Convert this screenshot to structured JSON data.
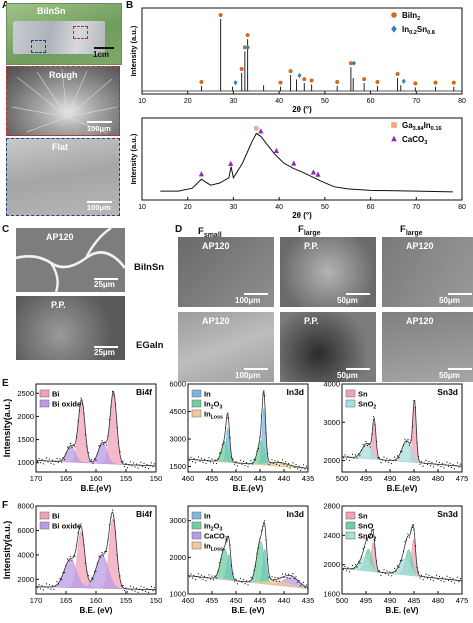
{
  "panels": {
    "A": {
      "label": "A",
      "sample": "BiInSn",
      "scale_photo": "1cm",
      "rough": "Rough",
      "flat": "Flat",
      "scale_rough": "100μm",
      "scale_flat": "100μm",
      "colors": {
        "rough_box": "#d22323",
        "flat_box": "#1f3f8f"
      }
    },
    "B": {
      "label": "B"
    },
    "C": {
      "label": "C",
      "top": "AP120",
      "bottom": "P.P.",
      "scale_top": "25μm",
      "scale_bottom": "25μm"
    },
    "D": {
      "label": "D",
      "col_headers": [
        {
          "main": "F",
          "sub": "small"
        },
        {
          "main": "F",
          "sub": "large"
        },
        {
          "main": "F",
          "sub": "large"
        }
      ],
      "row_labels": [
        "BiInSn",
        "EGaIn"
      ],
      "images": [
        {
          "label": "AP120",
          "scale": "100μm"
        },
        {
          "label": "P.P.",
          "scale": "50μm"
        },
        {
          "label": "AP120",
          "scale": "50μm"
        },
        {
          "label": "AP120",
          "scale": "100μm"
        },
        {
          "label": "P.P.",
          "scale": "50μm"
        },
        {
          "label": "AP120",
          "scale": "50μm"
        }
      ]
    },
    "E": {
      "label": "E"
    },
    "F": {
      "label": "F"
    }
  },
  "chart_data": [
    {
      "id": "B-top",
      "type": "scatter",
      "xlabel": "2θ (°)",
      "ylabel": "Intensity (a.u.)",
      "xlim": [
        10,
        80
      ],
      "xticks": [
        10,
        20,
        30,
        40,
        50,
        60,
        70,
        80
      ],
      "legend": [
        {
          "name": "BiIn",
          "sub": "2",
          "color": "#d2691e",
          "marker": "circle"
        },
        {
          "name": "In",
          "sub": "0.2",
          "name2": "Sn",
          "sub2": "0.8",
          "color": "#2c7fb8",
          "marker": "diamond"
        }
      ],
      "peaks": [
        {
          "x": 23.0,
          "h": 0.07
        },
        {
          "x": 27.2,
          "h": 1.0
        },
        {
          "x": 29.8,
          "h": 0.06
        },
        {
          "x": 31.8,
          "h": 0.25
        },
        {
          "x": 32.5,
          "h": 0.55
        },
        {
          "x": 33.1,
          "h": 0.72
        },
        {
          "x": 36.6,
          "h": 0.08
        },
        {
          "x": 40.3,
          "h": 0.06
        },
        {
          "x": 42.5,
          "h": 0.22
        },
        {
          "x": 43.8,
          "h": 0.16
        },
        {
          "x": 45.5,
          "h": 0.11
        },
        {
          "x": 47.1,
          "h": 0.09
        },
        {
          "x": 52.7,
          "h": 0.07
        },
        {
          "x": 55.7,
          "h": 0.33
        },
        {
          "x": 56.2,
          "h": 0.18
        },
        {
          "x": 58.6,
          "h": 0.11
        },
        {
          "x": 61.5,
          "h": 0.07
        },
        {
          "x": 65.9,
          "h": 0.18
        },
        {
          "x": 66.6,
          "h": 0.08
        },
        {
          "x": 69.8,
          "h": 0.05
        },
        {
          "x": 74.2,
          "h": 0.06
        },
        {
          "x": 78.2,
          "h": 0.06
        }
      ],
      "markers_birn": [
        23.0,
        27.2,
        31.8,
        32.5,
        33.1,
        40.3,
        42.5,
        45.5,
        47.1,
        52.7,
        55.7,
        58.6,
        61.5,
        65.9,
        69.8,
        74.2,
        78.2
      ],
      "markers_insn": [
        29.8,
        32.5,
        43.8,
        55.7,
        66.6
      ]
    },
    {
      "id": "B-bottom",
      "type": "line",
      "xlabel": "2θ (°)",
      "ylabel": "Intensity (a.u.)",
      "xlim": [
        10,
        80
      ],
      "xticks": [
        10,
        20,
        30,
        40,
        50,
        60,
        70,
        80
      ],
      "legend": [
        {
          "name": "Ga",
          "sub": "3.84",
          "name2": "In",
          "sub2": "0.16",
          "color": "#f4a582",
          "marker": "square"
        },
        {
          "name": "CaCO",
          "sub": "3",
          "color": "#8c2db8",
          "marker": "triangle"
        }
      ],
      "curve": [
        [
          14,
          0.12
        ],
        [
          18,
          0.12
        ],
        [
          21,
          0.16
        ],
        [
          23,
          0.28
        ],
        [
          25,
          0.2
        ],
        [
          27,
          0.23
        ],
        [
          29,
          0.3
        ],
        [
          29.5,
          0.45
        ],
        [
          30,
          0.3
        ],
        [
          32,
          0.5
        ],
        [
          34,
          0.78
        ],
        [
          35,
          0.9
        ],
        [
          36,
          0.86
        ],
        [
          37,
          0.78
        ],
        [
          39,
          0.62
        ],
        [
          41,
          0.5
        ],
        [
          43,
          0.43
        ],
        [
          45,
          0.38
        ],
        [
          47,
          0.32
        ],
        [
          49,
          0.26
        ],
        [
          52,
          0.18
        ],
        [
          55,
          0.15
        ],
        [
          60,
          0.13
        ],
        [
          70,
          0.12
        ],
        [
          78,
          0.11
        ]
      ],
      "markers_ga": [
        35.0
      ],
      "markers_caco": [
        23.0,
        29.4,
        36.0,
        39.4,
        43.2,
        47.5,
        48.5
      ]
    },
    {
      "id": "E-Bi",
      "type": "area",
      "region": "Bi4f",
      "xlabel": "B.E.(eV)",
      "ylabel": "Intensity(a.u.)",
      "xlim": [
        170,
        150
      ],
      "xticks": [
        170,
        165,
        160,
        155,
        150
      ],
      "yticks": [
        1000,
        1500,
        2000,
        2500
      ],
      "ylim": [
        800,
        2700
      ],
      "legend": [
        {
          "name": "Bi",
          "color": "#f0a3b5"
        },
        {
          "name": "Bi oxide",
          "color": "#b99be6"
        }
      ],
      "components": [
        {
          "name": "Bi",
          "color": "#f0a3b5",
          "peaks": [
            [
              162.4,
              1350
            ],
            [
              157.1,
              1550
            ]
          ],
          "width": 0.55
        },
        {
          "name": "Bi oxide",
          "color": "#b99be6",
          "peaks": [
            [
              164.2,
              350
            ],
            [
              158.9,
              450
            ]
          ],
          "width": 0.7
        }
      ],
      "baseline": [
        1050,
        930
      ]
    },
    {
      "id": "E-In",
      "type": "area",
      "region": "In3d",
      "xlabel": "B.E.(eV)",
      "ylabel": "",
      "xlim": [
        460,
        435
      ],
      "xticks": [
        460,
        455,
        450,
        445,
        440,
        435
      ],
      "yticks": [
        1500,
        3000,
        4500,
        6000
      ],
      "ylim": [
        1200,
        6000
      ],
      "legend": [
        {
          "name": "In",
          "color": "#7db6e0"
        },
        {
          "name": "In",
          "sub": "2",
          "name2": "O",
          "sub2": "3",
          "color": "#6ecfa3"
        },
        {
          "name": "In",
          "sub": "Loss",
          "color": "#f2c998"
        }
      ],
      "components": [
        {
          "name": "In",
          "color": "#7db6e0",
          "peaks": [
            [
              451.7,
              1900
            ],
            [
              444.2,
              3100
            ]
          ],
          "width": 0.35
        },
        {
          "name": "In2O3",
          "color": "#6ecfa3",
          "peaks": [
            [
              452.3,
              1100
            ],
            [
              444.8,
              1300
            ]
          ],
          "width": 0.7
        },
        {
          "name": "InLoss",
          "color": "#f2c998",
          "peaks": [
            [
              441.0,
              200
            ]
          ],
          "width": 2.0
        }
      ],
      "baseline": [
        1900,
        1400
      ]
    },
    {
      "id": "E-Sn",
      "type": "area",
      "region": "Sn3d",
      "xlabel": "B.E.(eV)",
      "ylabel": "",
      "xlim": [
        500,
        475
      ],
      "xticks": [
        500,
        495,
        490,
        485,
        480,
        475
      ],
      "yticks": [
        2000,
        3000,
        4000
      ],
      "ylim": [
        1700,
        4000
      ],
      "legend": [
        {
          "name": "Sn",
          "color": "#f0a3b5"
        },
        {
          "name": "SnO",
          "sub": "2",
          "color": "#a8dede"
        }
      ],
      "components": [
        {
          "name": "Sn",
          "color": "#f0a3b5",
          "peaks": [
            [
              493.3,
              950
            ],
            [
              484.9,
              1500
            ]
          ],
          "width": 0.35
        },
        {
          "name": "SnO2",
          "color": "#a8dede",
          "peaks": [
            [
              494.8,
              400
            ],
            [
              486.5,
              550
            ]
          ],
          "width": 1.0
        }
      ],
      "baseline": [
        2100,
        1850
      ]
    },
    {
      "id": "F-Bi",
      "type": "area",
      "region": "Bi4f",
      "xlabel": "B.E. (eV)",
      "ylabel": "Intensity(a.u.)",
      "xlim": [
        170,
        150
      ],
      "xticks": [
        170,
        165,
        160,
        155,
        150
      ],
      "yticks": [
        2000,
        4000,
        6000,
        8000
      ],
      "ylim": [
        800,
        8000
      ],
      "legend": [
        {
          "name": "Bi",
          "color": "#f0a3b5"
        },
        {
          "name": "Bi oxide",
          "color": "#b99be6"
        }
      ],
      "components": [
        {
          "name": "Bi",
          "color": "#f0a3b5",
          "peaks": [
            [
              162.5,
              4600
            ],
            [
              157.2,
              5700
            ]
          ],
          "width": 0.6
        },
        {
          "name": "Bi oxide",
          "color": "#b99be6",
          "peaks": [
            [
              164.3,
              2300
            ],
            [
              159.0,
              2700
            ]
          ],
          "width": 1.0
        }
      ],
      "baseline": [
        1400,
        1150
      ]
    },
    {
      "id": "F-In",
      "type": "area",
      "region": "In3d",
      "xlabel": "B.E. (eV)",
      "ylabel": "",
      "xlim": [
        460,
        435
      ],
      "xticks": [
        460,
        455,
        450,
        445,
        440,
        435
      ],
      "yticks": [
        1000,
        2000,
        3000
      ],
      "ylim": [
        1000,
        3400
      ],
      "legend": [
        {
          "name": "In",
          "color": "#7db6e0"
        },
        {
          "name": "In",
          "sub": "2",
          "name2": "O",
          "sub2": "3",
          "color": "#6ecfa3"
        },
        {
          "name": "CaCO",
          "sub": "3",
          "color": "#b99be6"
        },
        {
          "name": "In",
          "sub": "Loss",
          "color": "#f2c998"
        }
      ],
      "components": [
        {
          "name": "In",
          "color": "#7db6e0",
          "peaks": [
            [
              451.5,
              700
            ],
            [
              444.0,
              950
            ]
          ],
          "width": 0.4
        },
        {
          "name": "In2O3",
          "color": "#6ecfa3",
          "peaks": [
            [
              452.4,
              850
            ],
            [
              444.9,
              1150
            ]
          ],
          "width": 0.8
        },
        {
          "name": "CaCO3",
          "color": "#b99be6",
          "peaks": [
            [
              438.5,
              250
            ]
          ],
          "width": 1.6
        },
        {
          "name": "InLoss",
          "color": "#f2c998",
          "peaks": [
            [
              441.5,
              120
            ]
          ],
          "width": 2.2
        }
      ],
      "baseline": [
        1500,
        1150
      ]
    },
    {
      "id": "F-Sn",
      "type": "area",
      "region": "Sn3d",
      "xlabel": "B.E. (eV)",
      "ylabel": "",
      "xlim": [
        500,
        475
      ],
      "xticks": [
        500,
        495,
        490,
        485,
        480,
        475
      ],
      "yticks": [
        1600,
        2000,
        2400,
        2800
      ],
      "ylim": [
        1600,
        2800
      ],
      "legend": [
        {
          "name": "Sn",
          "color": "#f0a3b5"
        },
        {
          "name": "SnO",
          "color": "#6ecfa3"
        },
        {
          "name": "SnO",
          "sub": "2",
          "color": "#a8dede"
        }
      ],
      "components": [
        {
          "name": "Sn",
          "color": "#f0a3b5",
          "peaks": [
            [
              493.5,
              400
            ],
            [
              485.1,
              500
            ]
          ],
          "width": 0.4
        },
        {
          "name": "SnO",
          "color": "#6ecfa3",
          "peaks": [
            [
              494.5,
              300
            ],
            [
              486.1,
              350
            ]
          ],
          "width": 0.7
        },
        {
          "name": "SnO2",
          "color": "#a8dede",
          "peaks": [
            [
              495.3,
              180
            ],
            [
              486.9,
              220
            ]
          ],
          "width": 1.1
        }
      ],
      "baseline": [
        1950,
        1780
      ]
    }
  ]
}
